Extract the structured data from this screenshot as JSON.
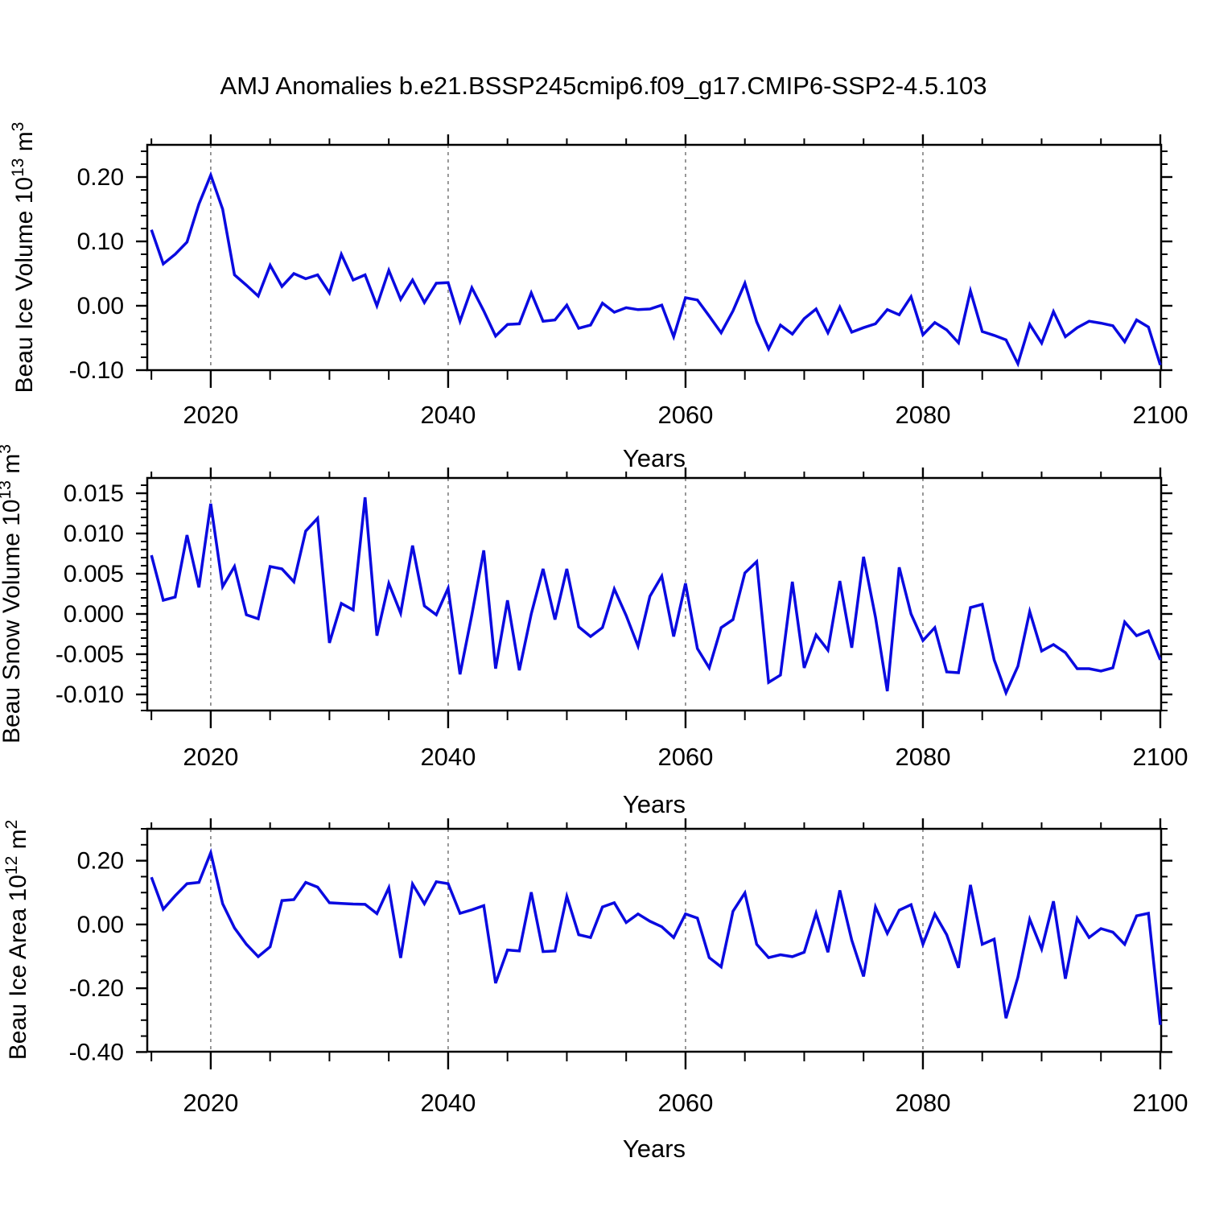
{
  "title": "AMJ Anomalies b.e21.BSSP245cmip6.f09_g17.CMIP6-SSP2-4.5.103",
  "colors": {
    "line": "#0a0ae0",
    "grid": "#777777",
    "frame": "#000000",
    "text": "#000000"
  },
  "x_axis": {
    "label": "Years",
    "ticks": [
      2020,
      2040,
      2060,
      2080,
      2100
    ],
    "tick_labels": [
      "2020",
      "2040",
      "2060",
      "2080",
      "2100"
    ],
    "minor_step": 5,
    "xlim": [
      2014.65,
      2100.07
    ],
    "gridlines": [
      2020,
      2040,
      2060,
      2080
    ]
  },
  "years": [
    2015,
    2016,
    2017,
    2018,
    2019,
    2020,
    2021,
    2022,
    2023,
    2024,
    2025,
    2026,
    2027,
    2028,
    2029,
    2030,
    2031,
    2032,
    2033,
    2034,
    2035,
    2036,
    2037,
    2038,
    2039,
    2040,
    2041,
    2042,
    2043,
    2044,
    2045,
    2046,
    2047,
    2048,
    2049,
    2050,
    2051,
    2052,
    2053,
    2054,
    2055,
    2056,
    2057,
    2058,
    2059,
    2060,
    2061,
    2062,
    2063,
    2064,
    2065,
    2066,
    2067,
    2068,
    2069,
    2070,
    2071,
    2072,
    2073,
    2074,
    2075,
    2076,
    2077,
    2078,
    2079,
    2080,
    2081,
    2082,
    2083,
    2084,
    2085,
    2086,
    2087,
    2088,
    2089,
    2090,
    2091,
    2092,
    2093,
    2094,
    2095,
    2096,
    2097,
    2098,
    2099,
    2100
  ],
  "chart_data": [
    {
      "id": "beau-ice-volume",
      "type": "line",
      "ylabel": "Beau Ice Volume 10¹³ m³",
      "ylabel_parts": [
        {
          "t": "Beau Ice Volume 10"
        },
        {
          "t": "13",
          "sup": true
        },
        {
          "t": " m"
        },
        {
          "t": "3",
          "sup": true
        }
      ],
      "ylim": [
        -0.1,
        0.25
      ],
      "yticks": [
        0.2,
        0.1,
        0.0,
        -0.1
      ],
      "ytick_labels": [
        "0.20",
        "0.10",
        "0.00",
        "-0.10"
      ],
      "yminor_step": 0.02,
      "values": [
        0.118,
        0.065,
        0.08,
        0.099,
        0.158,
        0.203,
        0.15,
        0.048,
        0.032,
        0.015,
        0.063,
        0.03,
        0.05,
        0.042,
        0.048,
        0.02,
        0.08,
        0.04,
        0.048,
        0.0,
        0.055,
        0.01,
        0.04,
        0.005,
        0.035,
        0.036,
        -0.024,
        0.028,
        -0.008,
        -0.047,
        -0.029,
        -0.028,
        0.02,
        -0.024,
        -0.022,
        0.001,
        -0.035,
        -0.03,
        0.004,
        -0.01,
        -0.003,
        -0.006,
        -0.005,
        0.001,
        -0.048,
        0.0125,
        0.009,
        -0.016,
        -0.042,
        -0.008,
        0.035,
        -0.025,
        -0.067,
        -0.03,
        -0.044,
        -0.02,
        -0.005,
        -0.042,
        -0.002,
        -0.041,
        -0.034,
        -0.028,
        -0.006,
        -0.014,
        0.014,
        -0.045,
        -0.026,
        -0.0375,
        -0.0575,
        0.023,
        -0.04,
        -0.046,
        -0.053,
        -0.09,
        -0.029,
        -0.058,
        -0.009,
        -0.048,
        -0.034,
        -0.024,
        -0.027,
        -0.031,
        -0.056,
        -0.022,
        -0.033,
        -0.092
      ]
    },
    {
      "id": "beau-snow-volume",
      "type": "line",
      "ylabel": "Beau Snow Volume 10¹³ m³",
      "ylabel_parts": [
        {
          "t": "Beau Snow Volume 10"
        },
        {
          "t": "13",
          "sup": true
        },
        {
          "t": " m"
        },
        {
          "t": "3",
          "sup": true
        }
      ],
      "ylim": [
        -0.012,
        0.0169
      ],
      "yticks": [
        0.015,
        0.01,
        0.005,
        0.0,
        -0.005,
        -0.01
      ],
      "ytick_labels": [
        "0.015",
        "0.010",
        "0.005",
        "0.000",
        "-0.005",
        "-0.010"
      ],
      "yminor_step": 0.001,
      "values": [
        0.0073,
        0.0017,
        0.0021,
        0.0098,
        0.0033,
        0.0137,
        0.0034,
        0.0059,
        -0.0001,
        -0.0006,
        0.0059,
        0.0056,
        0.004,
        0.0103,
        0.0119,
        -0.0036,
        0.0013,
        0.0005,
        0.0145,
        -0.0027,
        0.0038,
        0.0001,
        0.0085,
        0.001,
        -0.0001,
        0.0032,
        -0.0075,
        -0.0001,
        0.0079,
        -0.0068,
        0.0017,
        -0.007,
        0.0,
        0.0056,
        -0.0007,
        0.0056,
        -0.0016,
        -0.0028,
        -0.0017,
        0.0031,
        -0.0002,
        -0.004,
        0.0022,
        0.0047,
        -0.0028,
        0.0038,
        -0.0043,
        -0.0067,
        -0.0017,
        -0.0007,
        0.0051,
        0.0065,
        -0.0085,
        -0.0076,
        0.004,
        -0.0067,
        -0.0026,
        -0.0045,
        0.0041,
        -0.0042,
        0.0071,
        -0.0004,
        -0.0096,
        0.0058,
        0.0,
        -0.0033,
        -0.0017,
        -0.0072,
        -0.0073,
        0.0008,
        0.0012,
        -0.0057,
        -0.0098,
        -0.0065,
        0.0003,
        -0.0046,
        -0.0038,
        -0.0048,
        -0.0068,
        -0.0068,
        -0.0071,
        -0.0067,
        -0.001,
        -0.0027,
        -0.0021,
        -0.0057
      ]
    },
    {
      "id": "beau-ice-area",
      "type": "line",
      "ylabel": "Beau Ice Area 10¹² m²",
      "ylabel_parts": [
        {
          "t": "Beau Ice Area 10"
        },
        {
          "t": "12",
          "sup": true
        },
        {
          "t": " m"
        },
        {
          "t": "2",
          "sup": true
        }
      ],
      "ylim": [
        -0.399,
        0.3
      ],
      "yticks": [
        0.2,
        0.0,
        -0.2,
        -0.4
      ],
      "ytick_labels": [
        "0.20",
        "0.00",
        "-0.20",
        "-0.40"
      ],
      "yminor_step": 0.05,
      "values": [
        0.148,
        0.048,
        0.09,
        0.128,
        0.132,
        0.225,
        0.065,
        -0.011,
        -0.062,
        -0.101,
        -0.07,
        0.075,
        0.078,
        0.132,
        0.117,
        0.068,
        0.066,
        0.064,
        0.063,
        0.034,
        0.115,
        -0.105,
        0.127,
        0.065,
        0.134,
        0.128,
        0.035,
        0.046,
        0.059,
        -0.184,
        -0.08,
        -0.083,
        0.101,
        -0.085,
        -0.083,
        0.088,
        -0.032,
        -0.041,
        0.055,
        0.068,
        0.006,
        0.033,
        0.01,
        -0.007,
        -0.041,
        0.033,
        0.02,
        -0.104,
        -0.133,
        0.041,
        0.099,
        -0.062,
        -0.104,
        -0.095,
        -0.101,
        -0.087,
        0.035,
        -0.087,
        0.107,
        -0.049,
        -0.163,
        0.055,
        -0.028,
        0.045,
        0.062,
        -0.062,
        0.033,
        -0.032,
        -0.136,
        0.124,
        -0.062,
        -0.046,
        -0.294,
        -0.165,
        0.016,
        -0.077,
        0.073,
        -0.17,
        0.019,
        -0.041,
        -0.013,
        -0.024,
        -0.062,
        0.027,
        0.035,
        -0.315
      ]
    }
  ]
}
